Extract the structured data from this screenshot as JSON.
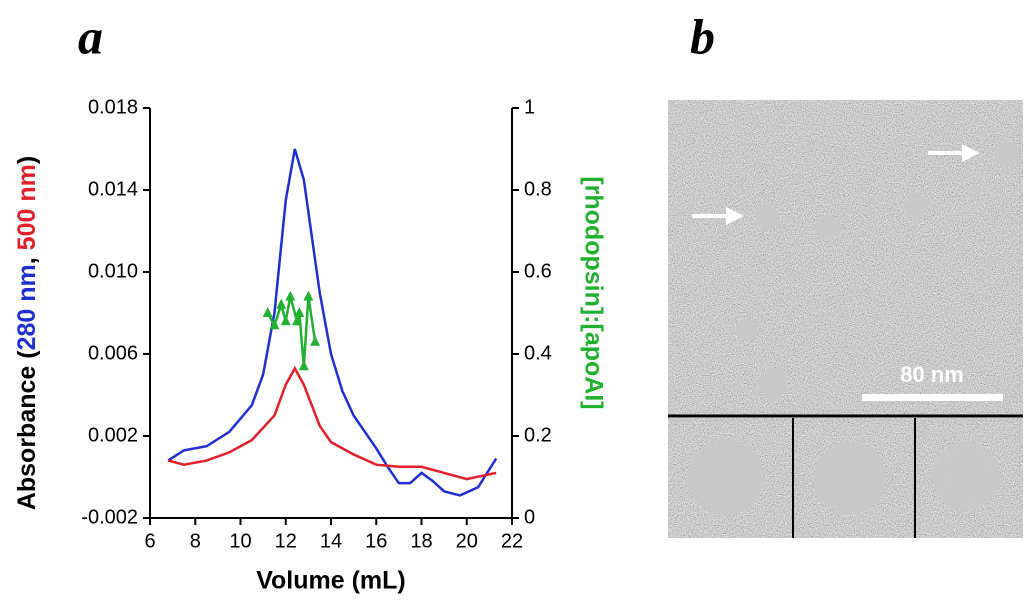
{
  "chart_data": {
    "type": "line",
    "panel_labels": [
      "a",
      "b"
    ],
    "xlabel": "Volume (mL)",
    "ylabel_parts": [
      "Absorbance (",
      ", ",
      ")"
    ],
    "y2label": "[rhodopsin]:[apoAI]",
    "xlim": [
      6,
      22
    ],
    "xticks": [
      6,
      8,
      10,
      12,
      14,
      16,
      18,
      20,
      22
    ],
    "ylim": [
      -0.002,
      0.018
    ],
    "yticks": [
      -0.002,
      0.002,
      0.006,
      {
        "value": 0.01,
        "label": "0.010"
      },
      0.014,
      0.018
    ],
    "y2lim": [
      0,
      1
    ],
    "y2ticks": [
      0,
      0.2,
      0.4,
      0.6,
      0.8,
      1
    ],
    "series": [
      {
        "name": "280 nm",
        "color": "#1f2fd0",
        "x": [
          6.8,
          7.5,
          8.5,
          9.5,
          10.5,
          11,
          11.5,
          12,
          12.4,
          12.8,
          13.5,
          14,
          14.5,
          15,
          15.5,
          16,
          16.5,
          17,
          17.5,
          18,
          18.5,
          19,
          19.7,
          20.5,
          21.3
        ],
        "values": [
          0.0008,
          0.0013,
          0.0015,
          0.0022,
          0.0035,
          0.005,
          0.008,
          0.0135,
          0.016,
          0.0145,
          0.009,
          0.006,
          0.0042,
          0.003,
          0.0022,
          0.0014,
          0.0005,
          -0.0003,
          -0.0003,
          0.0002,
          -0.0002,
          -0.0007,
          -0.0009,
          -0.0005,
          0.0009
        ]
      },
      {
        "name": "500 nm",
        "color": "#e0202a",
        "x": [
          6.8,
          7.5,
          8.5,
          9.5,
          10.5,
          11.5,
          12,
          12.4,
          12.8,
          13.5,
          14,
          15,
          16,
          17,
          18,
          19,
          20,
          21.3
        ],
        "values": [
          0.0008,
          0.0006,
          0.0008,
          0.0012,
          0.0018,
          0.003,
          0.0045,
          0.0053,
          0.0045,
          0.0025,
          0.0017,
          0.0011,
          0.0006,
          0.0005,
          0.0005,
          0.0002,
          -0.0001,
          0.0002
        ]
      },
      {
        "name": "[rhodopsin]:[apoAI]",
        "color": "#22b030",
        "axis": "y2",
        "marker": "triangle",
        "x": [
          11.2,
          11.5,
          11.8,
          12.0,
          12.2,
          12.5,
          12.6,
          12.8,
          13.0,
          13.3
        ],
        "values": [
          0.5,
          0.47,
          0.52,
          0.48,
          0.54,
          0.48,
          0.5,
          0.37,
          0.54,
          0.43
        ]
      }
    ],
    "scale_bar": "80 nm"
  }
}
